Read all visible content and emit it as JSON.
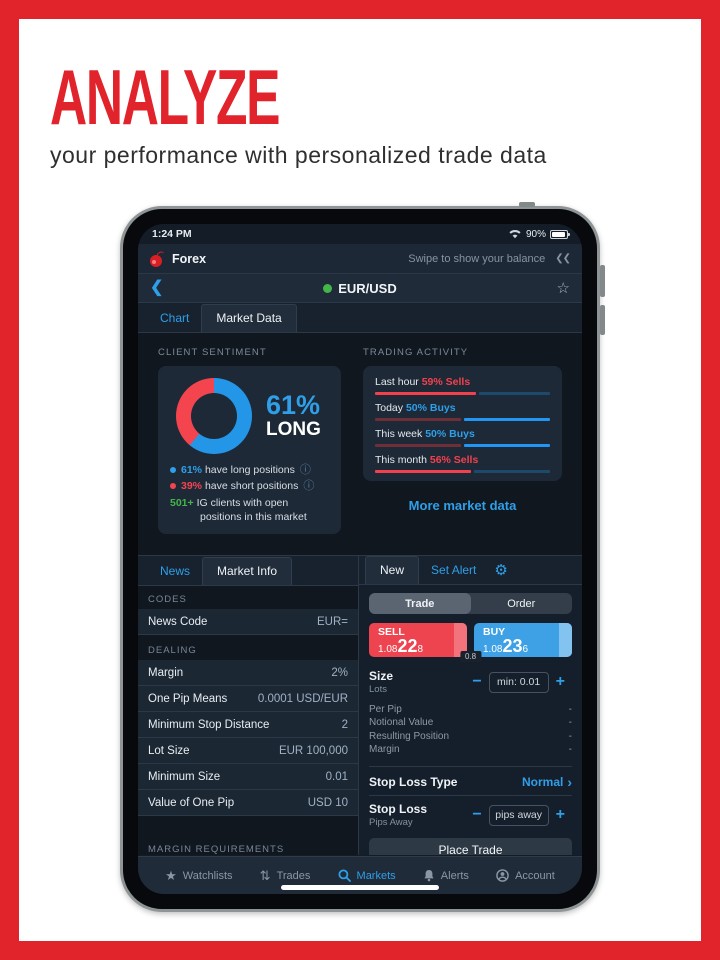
{
  "hero": {
    "title": "ANALYZE",
    "subtitle": "your performance with personalized trade data",
    "accent_color": "#e1232b"
  },
  "status_bar": {
    "time": "1:24 PM",
    "battery_pct": "90%"
  },
  "app_header": {
    "market_label": "Forex",
    "balance_hint": "Swipe to show your balance",
    "collapse_glyph": "❮❮"
  },
  "nav": {
    "back_glyph": "❮",
    "title": "EUR/USD",
    "status_dot_color": "#43b64a",
    "favorite_glyph": "☆"
  },
  "top_tabs": {
    "chart": "Chart",
    "market_data": "Market Data"
  },
  "client_sentiment": {
    "section_title": "CLIENT SENTIMENT",
    "donut": {
      "long_pct": 61,
      "short_pct": 39,
      "long_color": "#2496e8",
      "short_color": "#f4454f"
    },
    "headline_value": "61%",
    "headline_label": "LONG",
    "legend": [
      {
        "value": "61%",
        "text": "have long positions",
        "color": "#2e9fe8",
        "info_glyph": "ⓘ"
      },
      {
        "value": "39%",
        "text": "have short positions",
        "color": "#f4454f",
        "info_glyph": "ⓘ"
      }
    ],
    "clients_value": "501+",
    "clients_text": "IG clients with open positions in this market"
  },
  "trading_activity": {
    "section_title": "TRADING ACTIVITY",
    "rows": [
      {
        "period": "Last hour",
        "value": "59% Sells",
        "direction": "sell",
        "pct": 59
      },
      {
        "period": "Today",
        "value": "50% Buys",
        "direction": "buy",
        "pct": 50
      },
      {
        "period": "This week",
        "value": "50% Buys",
        "direction": "buy",
        "pct": 50
      },
      {
        "period": "This month",
        "value": "56% Sells",
        "direction": "sell",
        "pct": 56
      }
    ],
    "bar_colors": {
      "sell_bright": "#f2414d",
      "sell_dim": "#6e2f38",
      "buy_bright": "#2196f3",
      "buy_dim": "#1d4a6b"
    },
    "more_link": "More market data"
  },
  "chart_data": [
    {
      "type": "pie",
      "title": "Client sentiment EUR/USD",
      "labels": [
        "Long",
        "Short"
      ],
      "values": [
        61,
        39
      ]
    },
    {
      "type": "bar",
      "title": "Trading activity",
      "categories": [
        "Last hour",
        "Today",
        "This week",
        "This month"
      ],
      "series": [
        {
          "name": "Sells %",
          "values": [
            59,
            50,
            50,
            56
          ]
        },
        {
          "name": "Buys %",
          "values": [
            41,
            50,
            50,
            44
          ]
        }
      ]
    }
  ],
  "info_panel": {
    "tab_news": "News",
    "tab_market_info": "Market Info",
    "codes_title": "CODES",
    "codes_rows": [
      {
        "label": "News Code",
        "value": "EUR="
      }
    ],
    "dealing_title": "DEALING",
    "dealing_rows": [
      {
        "label": "Margin",
        "value": "2%"
      },
      {
        "label": "One Pip Means",
        "value": "0.0001 USD/EUR"
      },
      {
        "label": "Minimum Stop Distance",
        "value": "2"
      },
      {
        "label": "Lot Size",
        "value": "EUR 100,000"
      },
      {
        "label": "Minimum Size",
        "value": "0.01"
      },
      {
        "label": "Value of One Pip",
        "value": "USD 10"
      }
    ],
    "margin_title": "MARGIN REQUIREMENTS"
  },
  "ticket": {
    "tab_new": "New",
    "tab_set_alert": "Set Alert",
    "gear_glyph": "⚙",
    "segmented": {
      "trade": "Trade",
      "order": "Order",
      "selected": "Trade"
    },
    "sell": {
      "label": "SELL",
      "price_prefix": "1.08",
      "price_big": "22",
      "price_small": "8"
    },
    "buy": {
      "label": "BUY",
      "price_prefix": "1.08",
      "price_big": "23",
      "price_small": "6"
    },
    "spread": "0.8",
    "size": {
      "label": "Size",
      "sublabel": "Lots",
      "minus": "−",
      "plus": "+",
      "placeholder": "min: 0.01"
    },
    "detail_rows": [
      {
        "label": "Per Pip",
        "value": "-"
      },
      {
        "label": "Notional Value",
        "value": "-"
      },
      {
        "label": "Resulting Position",
        "value": "-"
      },
      {
        "label": "Margin",
        "value": "-"
      }
    ],
    "stop_loss_type": {
      "label": "Stop Loss Type",
      "value": "Normal",
      "chevron": "›"
    },
    "stop_loss": {
      "label": "Stop Loss",
      "sublabel": "Pips Away",
      "minus": "−",
      "plus": "+",
      "placeholder": "pips away"
    },
    "place_trade": "Place Trade"
  },
  "tab_bar": {
    "items": [
      {
        "label": "Watchlists",
        "icon": "star-icon",
        "active": false
      },
      {
        "label": "Trades",
        "icon": "arrows-up-down-icon",
        "active": false
      },
      {
        "label": "Markets",
        "icon": "search-icon",
        "active": true
      },
      {
        "label": "Alerts",
        "icon": "bell-icon",
        "active": false
      },
      {
        "label": "Account",
        "icon": "person-icon",
        "active": false
      }
    ],
    "active_color": "#2e9fe8"
  }
}
